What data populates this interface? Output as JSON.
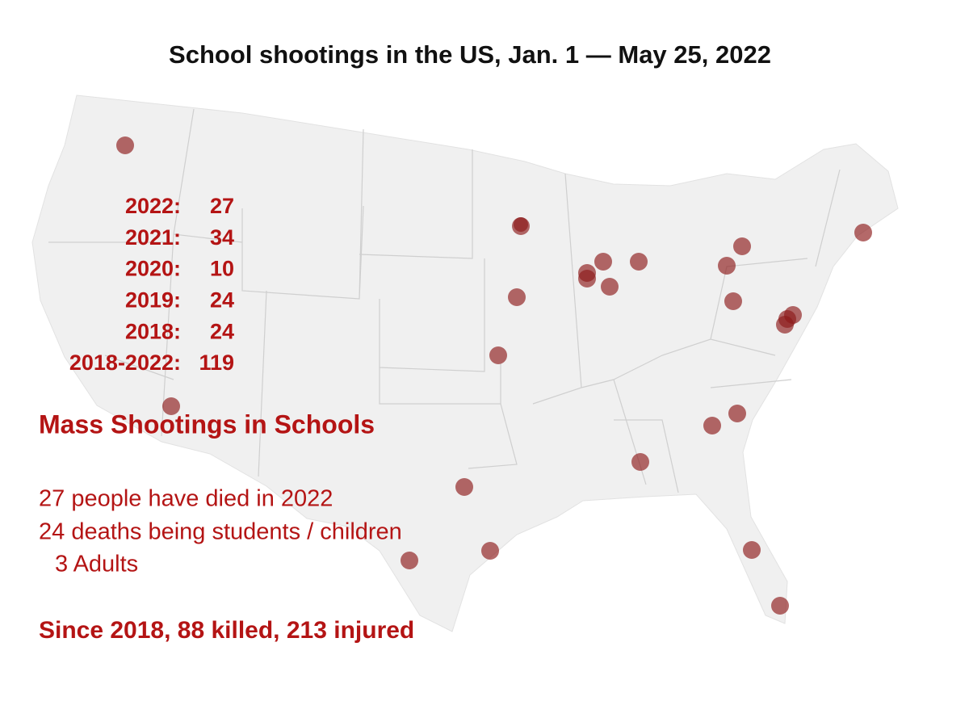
{
  "title": "School shootings in the US, Jan. 1 — May 25, 2022",
  "yearly_counts": [
    {
      "year": "2022:",
      "count": 27
    },
    {
      "year": "2021:",
      "count": 34
    },
    {
      "year": "2020:",
      "count": 10
    },
    {
      "year": "2019:",
      "count": 24
    },
    {
      "year": "2018:",
      "count": 24
    },
    {
      "year": "2018-2022:",
      "count": 119
    }
  ],
  "heading": "Mass Shootings in Schools",
  "notes": [
    "27 people have died in 2022",
    "24 deaths being students / children",
    "3 Adults"
  ],
  "summary": "Since 2018, 88 killed, 213 injured"
}
